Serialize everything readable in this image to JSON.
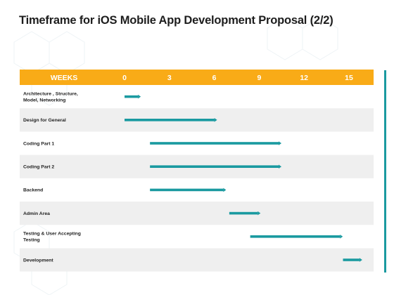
{
  "title": "Timeframe for iOS Mobile App Development Proposal (2/2)",
  "colors": {
    "header": "#f9ab17",
    "bar": "#1a9aa0",
    "row_alt": "#efefef",
    "accent": "#1a9aa0"
  },
  "chart_data": {
    "type": "gantt",
    "header_label": "WEEKS",
    "ticks": [
      "0",
      "3",
      "6",
      "9",
      "12",
      "15"
    ],
    "xlim": [
      0,
      15
    ],
    "tasks": [
      {
        "label": "Architecture , Structure, Model, Networking",
        "start": 0,
        "end": 0.9
      },
      {
        "label": "Design for General",
        "start": 0,
        "end": 6.0
      },
      {
        "label": "Coding Part 1",
        "start": 1.7,
        "end": 10.3
      },
      {
        "label": "Coding Part 2",
        "start": 1.7,
        "end": 10.3
      },
      {
        "label": "Backend",
        "start": 1.7,
        "end": 6.6
      },
      {
        "label": "Admin Area",
        "start": 7.0,
        "end": 8.9
      },
      {
        "label": "Testing & User Accepting Testing",
        "start": 8.4,
        "end": 14.4
      },
      {
        "label": "Development",
        "start": 14.6,
        "end": 15.7
      }
    ]
  }
}
